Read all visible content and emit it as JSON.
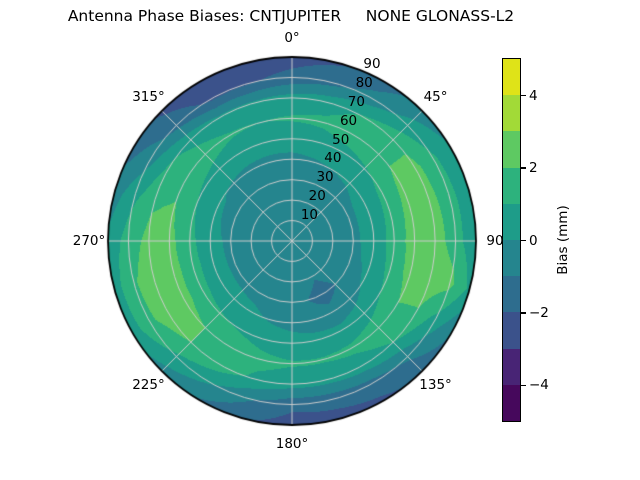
{
  "title": "Antenna Phase Biases: CNTJUPITER     NONE GLONASS-L2",
  "chart_data": {
    "type": "heatmap",
    "projection": "polar",
    "title": "Antenna Phase Biases: CNTJUPITER     NONE GLONASS-L2",
    "theta_zero": "top",
    "theta_direction": "clockwise",
    "grid": true,
    "theta_tick_labels": [
      "0°",
      "45°",
      "90",
      "135°",
      "180°",
      "225°",
      "270°",
      "315°"
    ],
    "theta_tick_angles_deg": [
      0,
      45,
      90,
      135,
      180,
      225,
      270,
      315
    ],
    "radial_tick_labels": [
      "10",
      "20",
      "30",
      "40",
      "50",
      "60",
      "70",
      "80",
      "90"
    ],
    "radial_tick_values": [
      10,
      20,
      30,
      40,
      50,
      60,
      70,
      80,
      90
    ],
    "radial_label_angle_deg": 22.5,
    "radial_range": [
      0,
      90
    ],
    "azimuth_deg": [
      0,
      15,
      30,
      45,
      60,
      75,
      90,
      105,
      120,
      135,
      150,
      165,
      180,
      195,
      210,
      225,
      240,
      255,
      270,
      285,
      300,
      315,
      330,
      345
    ],
    "zenith_deg": [
      0,
      10,
      20,
      30,
      40,
      50,
      60,
      70,
      80,
      90
    ],
    "bias_mm": [
      [
        -0.4,
        -0.4,
        -0.4,
        -0.4,
        -0.2,
        0.4,
        1.1,
        0.4,
        -1.7,
        -2.4
      ],
      [
        -0.4,
        -0.4,
        -0.4,
        -0.4,
        -0.1,
        0.5,
        1.2,
        0.6,
        -1.3,
        -2.1
      ],
      [
        -0.4,
        -0.4,
        -0.4,
        -0.3,
        0.0,
        0.7,
        1.5,
        1.1,
        -0.6,
        -1.5
      ],
      [
        -0.4,
        -0.4,
        -0.4,
        -0.3,
        0.1,
        0.9,
        1.8,
        1.7,
        0.4,
        -0.6
      ],
      [
        -0.4,
        -0.4,
        -0.4,
        -0.2,
        0.3,
        1.2,
        2.2,
        2.3,
        1.2,
        0.1
      ],
      [
        -0.4,
        -0.4,
        -0.4,
        -0.2,
        0.4,
        1.3,
        2.4,
        2.4,
        1.4,
        0.2
      ],
      [
        -0.4,
        -0.4,
        -0.4,
        -0.2,
        0.4,
        1.4,
        2.5,
        2.5,
        1.5,
        0.1
      ],
      [
        -0.4,
        -0.4,
        -0.4,
        -0.3,
        0.3,
        1.3,
        2.4,
        2.6,
        2.3,
        0.8
      ],
      [
        -0.4,
        -0.4,
        -0.5,
        -0.6,
        0.1,
        1.0,
        2.0,
        1.9,
        0.5,
        -0.9
      ],
      [
        -0.4,
        -0.4,
        -0.7,
        -1.0,
        -0.4,
        0.6,
        1.5,
        1.0,
        -0.8,
        -1.8
      ],
      [
        -0.4,
        -0.5,
        -0.9,
        -1.4,
        -0.7,
        0.3,
        1.2,
        0.6,
        -1.4,
        -2.2
      ],
      [
        -0.4,
        -0.4,
        -0.6,
        -1.0,
        -0.5,
        0.3,
        1.1,
        0.4,
        -1.6,
        -2.4
      ],
      [
        -0.4,
        -0.4,
        -0.5,
        -0.7,
        -0.3,
        0.4,
        1.1,
        0.4,
        -1.7,
        -2.5
      ],
      [
        -0.4,
        -0.4,
        -0.4,
        -0.5,
        -0.1,
        0.6,
        1.3,
        0.8,
        -0.9,
        -1.9
      ],
      [
        -0.4,
        -0.4,
        -0.4,
        -0.3,
        0.2,
        0.9,
        1.7,
        1.5,
        0.1,
        -1.1
      ],
      [
        -0.4,
        -0.4,
        -0.4,
        -0.2,
        0.3,
        1.1,
        2.0,
        2.0,
        0.8,
        -0.4
      ],
      [
        -0.4,
        -0.4,
        -0.4,
        -0.2,
        0.4,
        1.3,
        2.4,
        2.5,
        1.8,
        0.4
      ],
      [
        -0.4,
        -0.4,
        -0.4,
        -0.2,
        0.4,
        1.4,
        2.4,
        2.5,
        1.9,
        0.5
      ],
      [
        -0.4,
        -0.4,
        -0.4,
        -0.2,
        0.3,
        1.3,
        2.3,
        2.3,
        1.5,
        0.2
      ],
      [
        -0.4,
        -0.4,
        -0.4,
        -0.3,
        0.2,
        1.1,
        2.1,
        1.9,
        0.8,
        -0.5
      ],
      [
        -0.4,
        -0.4,
        -0.4,
        -0.3,
        0.1,
        0.9,
        1.7,
        1.2,
        -0.4,
        -1.4
      ],
      [
        -0.4,
        -0.4,
        -0.4,
        -0.4,
        -0.1,
        0.7,
        1.4,
        0.7,
        -1.4,
        -2.2
      ],
      [
        -0.4,
        -0.4,
        -0.4,
        -0.4,
        -0.2,
        0.5,
        1.1,
        0.2,
        -2.2,
        -2.8
      ],
      [
        -0.4,
        -0.4,
        -0.4,
        -0.4,
        -0.2,
        0.4,
        1.0,
        0.2,
        -2.1,
        -2.7
      ]
    ],
    "levels": [
      -5,
      -4,
      -3,
      -2,
      -1,
      0,
      1,
      2,
      3,
      4,
      5
    ],
    "level_colors": [
      "#46085c",
      "#482475",
      "#3b528b",
      "#2e6d8e",
      "#25858e",
      "#1e9c89",
      "#2db27d",
      "#5ec962",
      "#a2da37",
      "#dfe318"
    ],
    "grid_color": "#cdcdcd",
    "spine_color": "#000000",
    "colorbar": {
      "label": "Bias (mm)",
      "tick_labels": [
        "4",
        "2",
        "0",
        "−2",
        "−4"
      ],
      "tick_values": [
        4,
        2,
        0,
        -2,
        -4
      ],
      "min": -5,
      "max": 5,
      "position": "right"
    }
  }
}
